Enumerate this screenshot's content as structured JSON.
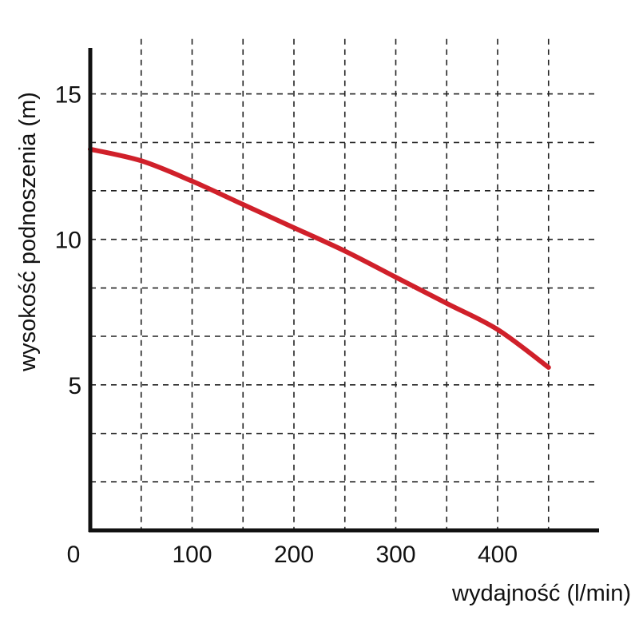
{
  "chart_data": {
    "type": "line",
    "title": "",
    "xlabel": "wydajność (l/min)",
    "ylabel": "wysokość podnoszenia (m)",
    "xlim": [
      0,
      500
    ],
    "ylim": [
      0,
      17
    ],
    "origin_label": "0",
    "x_ticks": [
      100,
      200,
      300,
      400
    ],
    "x_tick_labels": [
      "100",
      "200",
      "300",
      "400"
    ],
    "y_ticks": [
      5,
      10,
      15
    ],
    "y_tick_labels": [
      "5",
      "10",
      "15"
    ],
    "x_grid": [
      50,
      100,
      150,
      200,
      250,
      300,
      350,
      400,
      450
    ],
    "y_grid": [
      1.67,
      3.33,
      5,
      6.67,
      8.33,
      10,
      11.67,
      13.33,
      15
    ],
    "grid": true,
    "grid_style": "dashed",
    "series": [
      {
        "color": "#d0202a",
        "x": [
          0,
          50,
          100,
          150,
          200,
          250,
          300,
          350,
          400,
          450
        ],
        "y": [
          13.1,
          12.7,
          12.0,
          11.2,
          10.4,
          9.6,
          8.7,
          7.8,
          6.9,
          5.6
        ]
      }
    ]
  }
}
